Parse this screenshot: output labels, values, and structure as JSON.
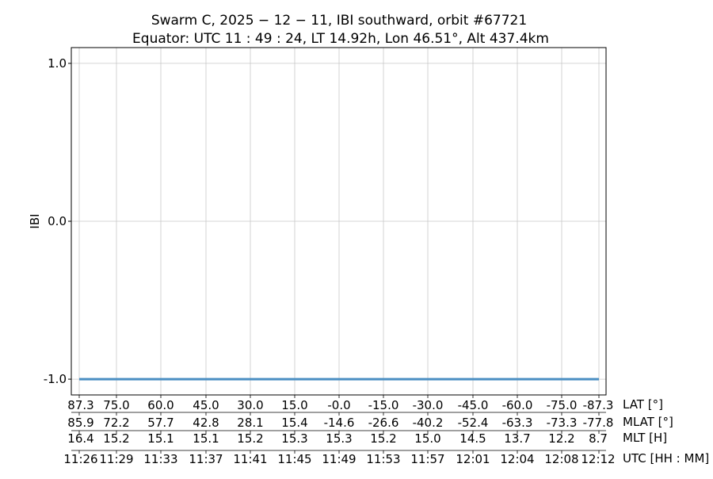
{
  "chart_data": {
    "type": "line",
    "title": "Swarm C, 2025 − 12 − 11, IBI southward, orbit #67721",
    "subtitle": "Equator: UTC 11 : 49 : 24, LT 14.92h, Lon 46.51°, Alt 437.4km",
    "ylabel": "IBI",
    "ylim": [
      -1.1,
      1.1
    ],
    "yticks": [
      "1.0",
      "0.0",
      "-1.0"
    ],
    "ytick_values": [
      1.0,
      0.0,
      -1.0
    ],
    "grid": true,
    "series": [
      {
        "x": [
          "11:26",
          "12:12"
        ],
        "values": [
          -1.0,
          -1.0
        ],
        "color": "#4a8ec2"
      }
    ],
    "xaxis_rows": [
      {
        "label": "LAT [°]",
        "ticks": [
          "87.3",
          "75.0",
          "60.0",
          "45.0",
          "30.0",
          "15.0",
          "-0.0",
          "-15.0",
          "-30.0",
          "-45.0",
          "-60.0",
          "-75.0",
          "-87.3"
        ]
      },
      {
        "label": "MLAT [°]",
        "ticks": [
          "85.9",
          "72.2",
          "57.7",
          "42.8",
          "28.1",
          "15.4",
          "-14.6",
          "-26.6",
          "-40.2",
          "-52.4",
          "-63.3",
          "-73.3",
          "-77.8"
        ]
      },
      {
        "label": "MLT [H]",
        "ticks": [
          "16.4",
          "15.2",
          "15.1",
          "15.1",
          "15.2",
          "15.3",
          "15.3",
          "15.2",
          "15.0",
          "14.5",
          "13.7",
          "12.2",
          "8.7"
        ]
      },
      {
        "label": "UTC [HH : MM]",
        "ticks": [
          "11:26",
          "11:29",
          "11:33",
          "11:37",
          "11:41",
          "11:45",
          "11:49",
          "11:53",
          "11:57",
          "12:01",
          "12:04",
          "12:08",
          "12:12"
        ]
      }
    ]
  }
}
